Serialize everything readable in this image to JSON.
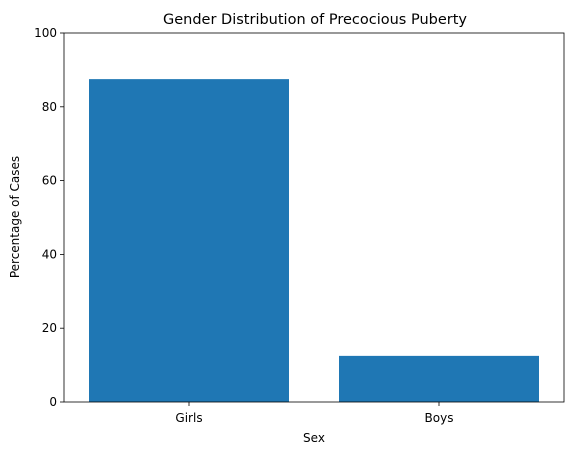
{
  "chart_data": {
    "type": "bar",
    "title": "Gender Distribution of Precocious Puberty",
    "xlabel": "Sex",
    "ylabel": "Percentage of Cases",
    "categories": [
      "Girls",
      "Boys"
    ],
    "values": [
      87.5,
      12.5
    ],
    "ylim": [
      0,
      100
    ],
    "yticks": [
      0,
      20,
      40,
      60,
      80,
      100
    ],
    "grid": false,
    "legend": "none",
    "bar_color": "#1f77b4"
  }
}
